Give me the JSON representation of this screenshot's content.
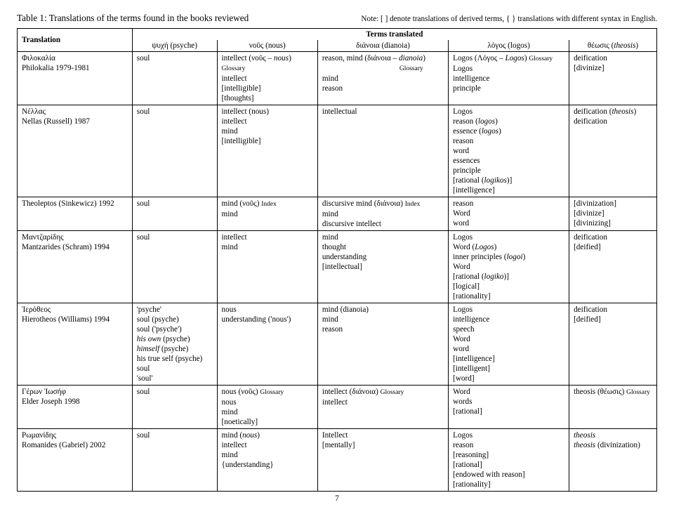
{
  "header": {
    "title": "Table 1:  Translations of the terms found in the books reviewed",
    "note": "Note: [ ] denote translations of derived terms, { } translations with different syntax in English."
  },
  "columns": {
    "super": "Terms translated",
    "translation": "Translation",
    "psyche": "ψυχή (psyche)",
    "nous": "νοῦς (nous)",
    "dianoia": "διάνοια (dianoia)",
    "logos": "λόγος (logos)",
    "theosis": "θέωσις (<i>theosis</i>)"
  },
  "rows": [
    {
      "label": "Φιλοκαλία<br>Philokalia 1979-1981",
      "psyche": [
        "soul"
      ],
      "nous": [
        "intellect (νοῦς – <i>nous</i>) <span class=\"sm\">Glossary</span>",
        "intellect",
        "[intelligible]",
        "[thoughts]"
      ],
      "dianoia": [
        "reason, mind (διάνοια – <i>dianoia</i>)",
        "<span style=\"display:inline-block;width:110px\"></span><span class=\"sm\">Glossary</span>",
        "mind",
        "reason"
      ],
      "logos": [
        "Logos (Λόγος – <i>Logos</i>) <span class=\"sm\">Glossary</span>",
        "Logos",
        "intelligence",
        "principle"
      ],
      "theosis": [
        "deification",
        "[divinize]"
      ]
    },
    {
      "label": "Νέλλας<br>Nellas (Russell) 1987",
      "psyche": [
        "soul"
      ],
      "nous": [
        "intellect (nous)",
        "intellect",
        "mind",
        "[intelligible]"
      ],
      "dianoia": [
        "intellectual"
      ],
      "logos": [
        "Logos",
        "reason (<i>logos</i>)",
        "essence (<i>logos</i>)",
        "reason",
        "word",
        "essences",
        "principle",
        "[rational (<i>logikos</i>)]",
        "[intelligence]"
      ],
      "theosis": [
        "deification (<i>theosis</i>)",
        "deification"
      ]
    },
    {
      "label": "Theoleptos (Sinkewicz) 1992",
      "psyche": [
        "soul"
      ],
      "nous": [
        "mind (νοῦς) <span class=\"sm\">Index</span>",
        "mind"
      ],
      "dianoia": [
        "discursive mind (διάνοια) <span class=\"sm\">Index</span>",
        "mind",
        "discursive intellect"
      ],
      "logos": [
        "reason",
        "Word",
        "word"
      ],
      "theosis": [
        "[divinization]",
        "[divinize]",
        "[divinizing]"
      ]
    },
    {
      "label": "Μαντζαρίδης<br>Mantzarides (Schram) 1994",
      "psyche": [
        "soul"
      ],
      "nous": [
        "intellect",
        "mind"
      ],
      "dianoia": [
        "mind",
        "thought",
        "understanding",
        "[intellectual]"
      ],
      "logos": [
        "Logos",
        "Word (<i>Logos</i>)",
        "inner principles (<i>logoi</i>)",
        "Word",
        "[rational (<i>logiko</i>)]",
        "[logical]",
        "[rationality]"
      ],
      "theosis": [
        "deification",
        "[deified]"
      ]
    },
    {
      "label": "Ἱερόθεος<br>Hierotheos (Williams) 1994",
      "psyche": [
        "'psyche'",
        "soul (psyche)",
        "soul ('psyche')",
        "<i>his own</i> (psyche)",
        "<i>himself</i> (psyche)",
        "his true self (psyche)",
        "soul",
        "'soul'"
      ],
      "nous": [
        "nous",
        "understanding ('nous')"
      ],
      "dianoia": [
        "mind (dianoia)",
        "mind",
        "reason"
      ],
      "logos": [
        "Logos",
        "intelligence",
        "speech",
        "Word",
        "word",
        "[intelligence]",
        "[intelligent]",
        "[word]"
      ],
      "theosis": [
        "deification",
        "[deified]"
      ]
    },
    {
      "label": "Γέρων Ἰωσήφ<br>Elder Joseph 1998",
      "psyche": [
        "soul"
      ],
      "nous": [
        "nous (νοῦς) <span class=\"sm\">Glossary</span>",
        "nous",
        "mind",
        "[noetically]"
      ],
      "dianoia": [
        "intellect (διάνοια) <span class=\"sm\">Glossary</span>",
        "intellect"
      ],
      "logos": [
        "Word",
        "words",
        "[rational]"
      ],
      "theosis": [
        "theosis (θέωσις) <span class=\"sm\">Glossary</span>"
      ]
    },
    {
      "label": "Ρωμανίδης<br>Romanides (Gabriel) 2002",
      "psyche": [
        "soul"
      ],
      "nous": [
        "mind (<i>nous</i>)",
        "intellect",
        "mind",
        "{understanding}"
      ],
      "dianoia": [
        "Intellect",
        "[mentally]"
      ],
      "logos": [
        "Logos",
        "reason",
        "[reasoning]",
        "[rational]",
        "[endowed with reason]",
        "[rationality]"
      ],
      "theosis": [
        "<i>theosis</i>",
        "<i>theosis</i> (divinization)"
      ]
    }
  ],
  "page": "7"
}
